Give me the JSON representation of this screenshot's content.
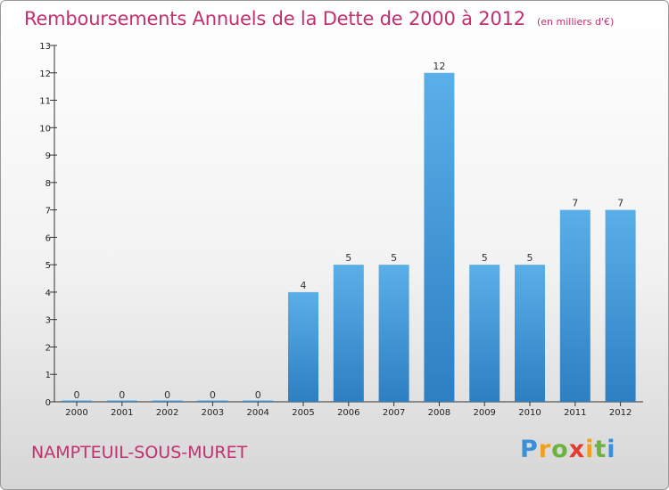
{
  "chart_data": {
    "type": "bar",
    "title": "Remboursements Annuels de la Dette de 2000 à 2012",
    "unit_note": "(en milliers d'€)",
    "categories": [
      "2000",
      "2001",
      "2002",
      "2003",
      "2004",
      "2005",
      "2006",
      "2007",
      "2008",
      "2009",
      "2010",
      "2011",
      "2012"
    ],
    "values": [
      0,
      0,
      0,
      0,
      0,
      4,
      5,
      5,
      12,
      5,
      5,
      7,
      7
    ],
    "ylim": [
      0,
      13
    ],
    "yticks": [
      0,
      1,
      2,
      3,
      4,
      5,
      6,
      7,
      8,
      9,
      10,
      11,
      12,
      13
    ],
    "xlabel": "",
    "ylabel": "",
    "grid": false,
    "bar_color": "#4a9fdc"
  },
  "location_label": "NAMPTEUIL-SOUS-MURET",
  "logo": {
    "letters": [
      "P",
      "r",
      "o",
      "x",
      "i",
      "t",
      "i"
    ],
    "colors": [
      "#3a8fd8",
      "#f0a020",
      "#6cb33e",
      "#e53a2e",
      "#f0a020",
      "#6cb33e",
      "#3a8fd8"
    ]
  },
  "colors": {
    "title": "#c2306f"
  }
}
